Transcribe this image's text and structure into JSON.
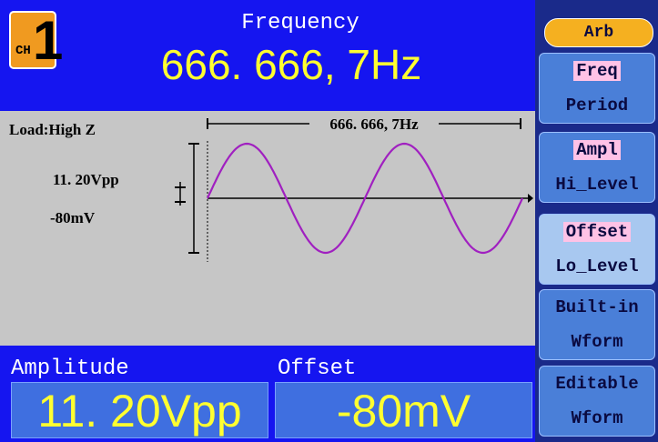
{
  "header": {
    "channel_prefix": "CH",
    "channel": "1",
    "title": "Frequency",
    "value": "666. 666, 7Hz"
  },
  "display": {
    "load": "Load:High Z",
    "amplitude": "11. 20Vpp",
    "offset": "-80mV",
    "period_label": "666. 666, 7Hz"
  },
  "params": [
    {
      "label": "Amplitude",
      "value": "11. 20Vpp"
    },
    {
      "label": "Offset",
      "value": "-80mV"
    }
  ],
  "menu": {
    "top": "Arb",
    "items": [
      {
        "primary": "Freq",
        "secondary": "Period"
      },
      {
        "primary": "Ampl",
        "secondary": "Hi_Level"
      },
      {
        "primary": "Offset",
        "secondary": "Lo_Level"
      },
      {
        "primary": "Built-in",
        "secondary": "Wform"
      },
      {
        "primary": "Editable",
        "secondary": "Wform"
      }
    ]
  }
}
